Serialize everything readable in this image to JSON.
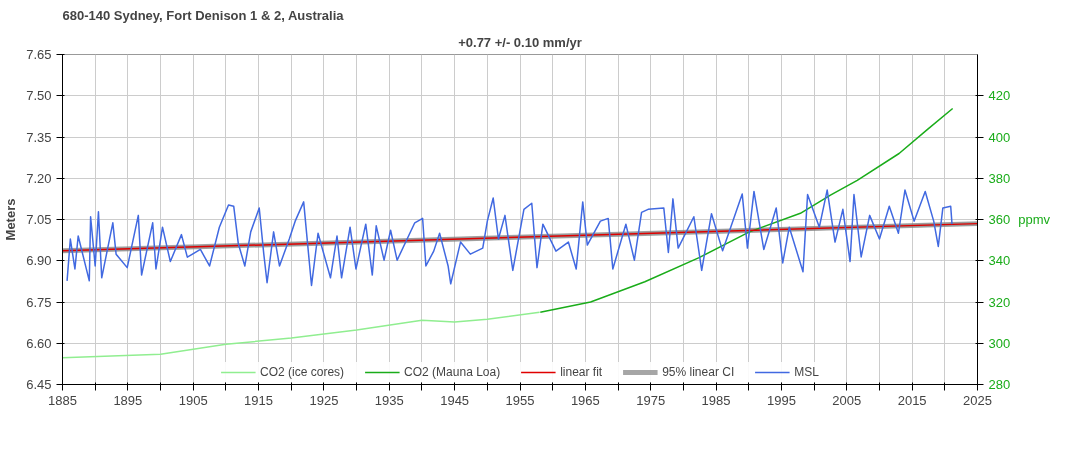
{
  "chart_data": {
    "type": "line",
    "title": "680-140 Sydney, Fort Denison 1 & 2, Australia",
    "subtitle": "+0.77 +/- 0.10 mm/yr",
    "ylabel": "Meters",
    "y2label": "ppmv",
    "xlim": [
      1885,
      2025
    ],
    "xticks": [
      1885,
      {
        "value": 1890,
        "label": null
      },
      1895,
      {
        "value": 1900,
        "label": null
      },
      1905,
      {
        "value": 1910,
        "label": null
      },
      1915,
      {
        "value": 1920,
        "label": null
      },
      1925,
      {
        "value": 1930,
        "label": null
      },
      1935,
      {
        "value": 1940,
        "label": null
      },
      1945,
      {
        "value": 1950,
        "label": null
      },
      1955,
      {
        "value": 1960,
        "label": null
      },
      1965,
      {
        "value": 1970,
        "label": null
      },
      1975,
      {
        "value": 1980,
        "label": null
      },
      1985,
      {
        "value": 1990,
        "label": null
      },
      1995,
      {
        "value": 2000,
        "label": null
      },
      2005,
      {
        "value": 2010,
        "label": null
      },
      2015,
      {
        "value": 2020,
        "label": null
      },
      2025
    ],
    "ylim": [
      6.45,
      7.65
    ],
    "yticks": [
      {
        "value": 6.45,
        "label": "6.45"
      },
      {
        "value": 6.6,
        "label": "6.60"
      },
      {
        "value": 6.75,
        "label": "6.75"
      },
      {
        "value": 6.9,
        "label": "6.90"
      },
      {
        "value": 7.05,
        "label": "7.05"
      },
      {
        "value": 7.2,
        "label": "7.20"
      },
      {
        "value": 7.35,
        "label": "7.35"
      },
      {
        "value": 7.5,
        "label": "7.50"
      },
      {
        "value": 7.65,
        "label": "7.65"
      }
    ],
    "y2lim": [
      280,
      440
    ],
    "y2ticks": [
      280,
      300,
      320,
      340,
      360,
      380,
      400,
      420
    ],
    "grid": true,
    "legend": "bottom",
    "marker": "none",
    "line_style": "solid",
    "series": [
      {
        "name": "CO2 (ice cores)",
        "color": "#90ee90",
        "axis": "y2",
        "x": [
          1885,
          1900,
          1910,
          1920,
          1930,
          1940,
          1945,
          1950,
          1958
        ],
        "values": [
          293,
          294.7,
          299.5,
          302.5,
          306.4,
          311.2,
          310.3,
          311.6,
          315
        ]
      },
      {
        "name": "CO2 (Mauna Loa)",
        "color": "#1aac1a",
        "axis": "y2",
        "x": [
          1958.1,
          1965.8,
          1974.1,
          1982.4,
          1990.1,
          1997.9,
          2002.5,
          2006.6,
          2013,
          2017.4,
          2021.2
        ],
        "values": [
          315,
          320,
          329.8,
          341.5,
          354,
          363,
          371.8,
          379,
          392,
          403.8,
          413.8
        ]
      },
      {
        "name": "linear fit",
        "color": "#e00000",
        "x": [
          1885,
          2025
        ],
        "values": [
          6.936,
          7.035
        ]
      },
      {
        "name": "95% linear CI",
        "color": "#808080",
        "x": [
          1885,
          2025
        ],
        "values": [
          6.936,
          7.035
        ],
        "lower": [
          6.929,
          7.028
        ],
        "upper": [
          6.943,
          7.042
        ]
      },
      {
        "name": "MSL",
        "color": "#4169e1",
        "x": [
          1885.7,
          1886.2,
          1886.9,
          1887.4,
          1889.1,
          1889.3,
          1890.0,
          1890.5,
          1891.0,
          1892.7,
          1893.2,
          1894.9,
          1896.6,
          1897.1,
          1898.8,
          1899.3,
          1900.3,
          1901.5,
          1903.2,
          1904.1,
          1906.1,
          1907.5,
          1909.0,
          1910.4,
          1911.2,
          1911.9,
          1912.9,
          1913.8,
          1915.1,
          1915.8,
          1916.3,
          1917.3,
          1918.2,
          1919.7,
          1920.6,
          1921.9,
          1923.1,
          1924.1,
          1926.0,
          1927.0,
          1927.7,
          1929.0,
          1929.9,
          1931.4,
          1932.4,
          1933.0,
          1934.2,
          1935.2,
          1936.2,
          1938.9,
          1940.1,
          1940.6,
          1941.8,
          1942.7,
          1944.0,
          1944.4,
          1945.9,
          1947.4,
          1949.3,
          1950.0,
          1950.9,
          1951.7,
          1952.7,
          1953.9,
          1955.6,
          1956.8,
          1957.6,
          1958.5,
          1960.5,
          1962.4,
          1963.6,
          1964.6,
          1965.3,
          1967.3,
          1968.5,
          1969.2,
          1971.2,
          1972.5,
          1973.6,
          1974.6,
          1977.0,
          1977.7,
          1978.4,
          1979.2,
          1981.6,
          1982.8,
          1984.3,
          1986.0,
          1989.0,
          1989.8,
          1990.8,
          1992.3,
          1994.2,
          1995.2,
          1996.2,
          1998.3,
          1999.0,
          2000.8,
          2002.0,
          2003.2,
          2004.4,
          2005.5,
          2006.1,
          2007.2,
          2008.5,
          2010.0,
          2011.5,
          2012.9,
          2013.9,
          2015.3,
          2017.0,
          2018.3,
          2019.0,
          2019.7,
          2020.9,
          2021.1
        ],
        "values": [
          6.827,
          6.979,
          6.87,
          6.99,
          6.827,
          7.06,
          6.881,
          7.078,
          6.838,
          7.038,
          6.924,
          6.875,
          7.065,
          6.848,
          7.038,
          6.87,
          7.022,
          6.897,
          6.995,
          6.913,
          6.941,
          6.881,
          7.022,
          7.103,
          7.098,
          6.962,
          6.881,
          7.005,
          7.092,
          6.924,
          6.82,
          7.005,
          6.881,
          6.979,
          7.044,
          7.114,
          6.81,
          7.0,
          6.838,
          6.99,
          6.838,
          7.022,
          6.87,
          7.033,
          6.848,
          7.027,
          6.902,
          7.011,
          6.902,
          7.038,
          7.054,
          6.881,
          6.935,
          7.0,
          6.881,
          6.816,
          6.968,
          6.924,
          6.946,
          7.044,
          7.128,
          6.979,
          7.065,
          6.865,
          7.087,
          7.109,
          6.875,
          7.033,
          6.935,
          6.968,
          6.87,
          7.114,
          6.957,
          7.044,
          7.054,
          6.87,
          7.033,
          6.902,
          7.076,
          7.087,
          7.092,
          6.93,
          7.125,
          6.946,
          7.06,
          6.865,
          7.071,
          6.936,
          7.143,
          6.946,
          7.152,
          6.941,
          7.092,
          6.892,
          7.022,
          6.86,
          7.141,
          7.022,
          7.157,
          6.968,
          7.087,
          6.897,
          7.141,
          6.914,
          7.065,
          6.979,
          7.098,
          7.0,
          7.157,
          7.044,
          7.152,
          7.044,
          6.952,
          7.092,
          7.098,
          7.033
        ]
      }
    ]
  }
}
